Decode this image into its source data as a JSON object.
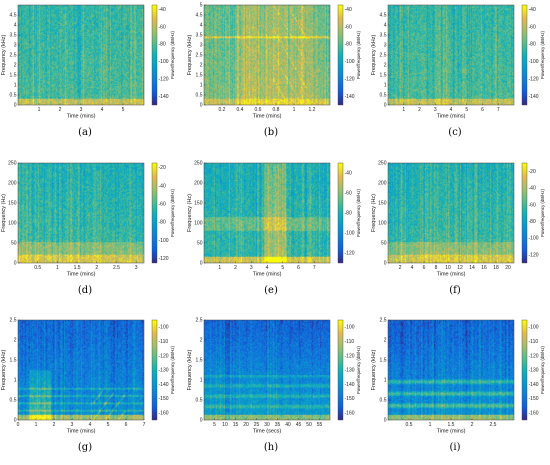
{
  "figure": {
    "description": "3x3 grid of spectrogram panels (a)-(i)"
  },
  "chart_data": [
    {
      "type": "heatmap",
      "caption": "(a)",
      "xlabel": "Time (mins)",
      "ylabel": "Frequency (kHz)",
      "colorbar_label": "Power/frequency (dB/Hz)",
      "xlim": [
        0,
        6
      ],
      "xticks": [
        1,
        2,
        3,
        4,
        5
      ],
      "xtick_labels": [
        "1",
        "2",
        "3",
        "4",
        "5"
      ],
      "ylim": [
        0,
        5
      ],
      "yticks": [
        0,
        0.5,
        1,
        1.5,
        2,
        2.5,
        3,
        3.5,
        4,
        4.5
      ],
      "ytick_labels": [
        "0",
        "0.5",
        "1",
        "1.5",
        "2",
        "2.5",
        "3",
        "3.5",
        "4",
        "4.5"
      ],
      "clim": [
        -150,
        -35
      ],
      "cticks": [
        -140,
        -120,
        -100,
        -80,
        -60,
        -40
      ],
      "ctick_labels": [
        "-140",
        "-120",
        "-100",
        "-80",
        "-60",
        "-40"
      ],
      "pattern": "broadband",
      "seed": 11
    },
    {
      "type": "heatmap",
      "caption": "(b)",
      "xlabel": "Time (mins)",
      "ylabel": "Frequency (kHz)",
      "colorbar_label": "Power/frequency (dB/Hz)",
      "xlim": [
        0,
        1.4
      ],
      "xticks": [
        0.2,
        0.4,
        0.6,
        0.8,
        1,
        1.2
      ],
      "xtick_labels": [
        "0.2",
        "0.4",
        "0.6",
        "0.8",
        "1",
        "1.2"
      ],
      "ylim": [
        0,
        5
      ],
      "yticks": [
        0,
        0.5,
        1,
        1.5,
        2,
        2.5,
        3,
        3.5,
        4,
        4.5,
        5
      ],
      "ytick_labels": [
        "0",
        "0.5",
        "1",
        "1.5",
        "2",
        "2.5",
        "3",
        "3.5",
        "4",
        "4.5",
        "5"
      ],
      "clim": [
        -150,
        -35
      ],
      "cticks": [
        -140,
        -120,
        -100,
        -80,
        -60,
        -40
      ],
      "ctick_labels": [
        "-140",
        "-120",
        "-100",
        "-80",
        "-60",
        "-40"
      ],
      "pattern": "busy",
      "seed": 23
    },
    {
      "type": "heatmap",
      "caption": "(c)",
      "xlabel": "Time (mins)",
      "ylabel": "Frequency (kHz)",
      "colorbar_label": "Power/frequency (dB/Hz)",
      "xlim": [
        0,
        8
      ],
      "xticks": [
        1,
        2,
        3,
        4,
        5,
        6,
        7
      ],
      "xtick_labels": [
        "1",
        "2",
        "3",
        "4",
        "5",
        "6",
        "7"
      ],
      "ylim": [
        0,
        5
      ],
      "yticks": [
        0,
        0.5,
        1,
        1.5,
        2,
        2.5,
        3,
        3.5,
        4,
        4.5
      ],
      "ytick_labels": [
        "0",
        "0.5",
        "1",
        "1.5",
        "2",
        "2.5",
        "3",
        "3.5",
        "4",
        "4.5"
      ],
      "clim": [
        -150,
        -35
      ],
      "cticks": [
        -140,
        -120,
        -100,
        -80,
        -60,
        -40
      ],
      "ctick_labels": [
        "-140",
        "-120",
        "-100",
        "-80",
        "-60",
        "-40"
      ],
      "pattern": "broadband",
      "seed": 37
    },
    {
      "type": "heatmap",
      "caption": "(d)",
      "xlabel": "Time (mins)",
      "ylabel": "Frequency (Hz)",
      "colorbar_label": "Power/frequency (dB/Hz)",
      "xlim": [
        0,
        3.2
      ],
      "xticks": [
        0.5,
        1,
        1.5,
        2,
        2.5,
        3
      ],
      "xtick_labels": [
        "0.5",
        "1",
        "1.5",
        "2",
        "2.5",
        "3"
      ],
      "ylim": [
        0,
        250
      ],
      "yticks": [
        0,
        50,
        100,
        150,
        200,
        250
      ],
      "ytick_labels": [
        "0",
        "50",
        "100",
        "150",
        "200",
        "250"
      ],
      "clim": [
        -125,
        -15
      ],
      "cticks": [
        -120,
        -100,
        -80,
        -60,
        -40,
        -20
      ],
      "ctick_labels": [
        "-120",
        "-100",
        "-80",
        "-60",
        "-40",
        "-20"
      ],
      "pattern": "lowfreq",
      "seed": 41
    },
    {
      "type": "heatmap",
      "caption": "(e)",
      "xlabel": "Time (mins)",
      "ylabel": "Frequency (Hz)",
      "colorbar_label": "Power/frequency (dB/Hz)",
      "xlim": [
        0,
        8
      ],
      "xticks": [
        1,
        2,
        3,
        4,
        5,
        6,
        7
      ],
      "xtick_labels": [
        "1",
        "2",
        "3",
        "4",
        "5",
        "6",
        "7"
      ],
      "ylim": [
        0,
        250
      ],
      "yticks": [
        0,
        50,
        100,
        150,
        200,
        250
      ],
      "ytick_labels": [
        "0",
        "50",
        "100",
        "150",
        "200",
        "250"
      ],
      "clim": [
        -130,
        -30
      ],
      "cticks": [
        -120,
        -100,
        -80,
        -60,
        -40
      ],
      "ctick_labels": [
        "-120",
        "-100",
        "-80",
        "-60",
        "-40"
      ],
      "pattern": "burst",
      "seed": 53
    },
    {
      "type": "heatmap",
      "caption": "(f)",
      "xlabel": "Time (mins)",
      "ylabel": "Frequency (Hz)",
      "colorbar_label": "Power/frequency (dB/Hz)",
      "xlim": [
        0,
        21
      ],
      "xticks": [
        2,
        4,
        6,
        8,
        10,
        12,
        14,
        16,
        18,
        20
      ],
      "xtick_labels": [
        "2",
        "4",
        "6",
        "8",
        "10",
        "12",
        "14",
        "16",
        "18",
        "20"
      ],
      "ylim": [
        0,
        250
      ],
      "yticks": [
        0,
        50,
        100,
        150,
        200,
        250
      ],
      "ytick_labels": [
        "0",
        "50",
        "100",
        "150",
        "200",
        "250"
      ],
      "clim": [
        -130,
        -10
      ],
      "cticks": [
        -120,
        -100,
        -80,
        -60,
        -40,
        -20
      ],
      "ctick_labels": [
        "-120",
        "-100",
        "-80",
        "-60",
        "-40",
        "-20"
      ],
      "pattern": "lowfreq",
      "seed": 67
    },
    {
      "type": "heatmap",
      "caption": "(g)",
      "xlabel": "Time (mins)",
      "ylabel": "Frequency (kHz)",
      "colorbar_label": "Power/frequency (dB/Hz)",
      "xlim": [
        0,
        7
      ],
      "xticks": [
        0,
        1,
        2,
        3,
        4,
        5,
        6,
        7
      ],
      "xtick_labels": [
        "0",
        "1",
        "2",
        "3",
        "4",
        "5",
        "6",
        "7"
      ],
      "ylim": [
        0,
        2.5
      ],
      "yticks": [
        0,
        0.5,
        1,
        1.5,
        2,
        2.5
      ],
      "ytick_labels": [
        "0",
        "0.5",
        "1",
        "1.5",
        "2",
        "2.5"
      ],
      "clim": [
        -165,
        -95
      ],
      "cticks": [
        -160,
        -150,
        -140,
        -130,
        -120,
        -110,
        -100
      ],
      "ctick_labels": [
        "-160",
        "-150",
        "-140",
        "-130",
        "-120",
        "-110",
        "-100"
      ],
      "pattern": "sparse",
      "seed": 79
    },
    {
      "type": "heatmap",
      "caption": "(h)",
      "xlabel": "Time (secs)",
      "ylabel": "Frequency (kHz)",
      "colorbar_label": "Power/frequency (dB/Hz)",
      "xlim": [
        0,
        60
      ],
      "xticks": [
        5,
        10,
        15,
        20,
        25,
        30,
        35,
        40,
        45,
        50,
        55
      ],
      "xtick_labels": [
        "5",
        "10",
        "15",
        "20",
        "25",
        "30",
        "35",
        "40",
        "45",
        "50",
        "55"
      ],
      "ylim": [
        0,
        2.5
      ],
      "yticks": [
        0,
        0.5,
        1,
        1.5,
        2,
        2.5
      ],
      "ytick_labels": [
        "0",
        "0.5",
        "1",
        "1.5",
        "2",
        "2.5"
      ],
      "clim": [
        -165,
        -95
      ],
      "cticks": [
        -160,
        -150,
        -140,
        -130,
        -120,
        -110,
        -100
      ],
      "ctick_labels": [
        "-160",
        "-150",
        "-140",
        "-130",
        "-120",
        "-110",
        "-100"
      ],
      "pattern": "bands",
      "seed": 83
    },
    {
      "type": "heatmap",
      "caption": "(i)",
      "xlabel": "Time (mins)",
      "ylabel": "Frequency (kHz)",
      "colorbar_label": "Power/frequency (dB/Hz)",
      "xlim": [
        0,
        3
      ],
      "xticks": [
        0.5,
        1,
        1.5,
        2,
        2.5
      ],
      "xtick_labels": [
        "0.5",
        "1",
        "1.5",
        "2",
        "2.5"
      ],
      "ylim": [
        0,
        2.5
      ],
      "yticks": [
        0,
        0.5,
        1,
        1.5,
        2,
        2.5
      ],
      "ytick_labels": [
        "0",
        "0.5",
        "1",
        "1.5",
        "2",
        "2.5"
      ],
      "clim": [
        -165,
        -95
      ],
      "cticks": [
        -160,
        -150,
        -140,
        -130,
        -120,
        -110,
        -100
      ],
      "ctick_labels": [
        "-160",
        "-150",
        "-140",
        "-130",
        "-120",
        "-110",
        "-100"
      ],
      "pattern": "harmonic",
      "seed": 97
    }
  ]
}
